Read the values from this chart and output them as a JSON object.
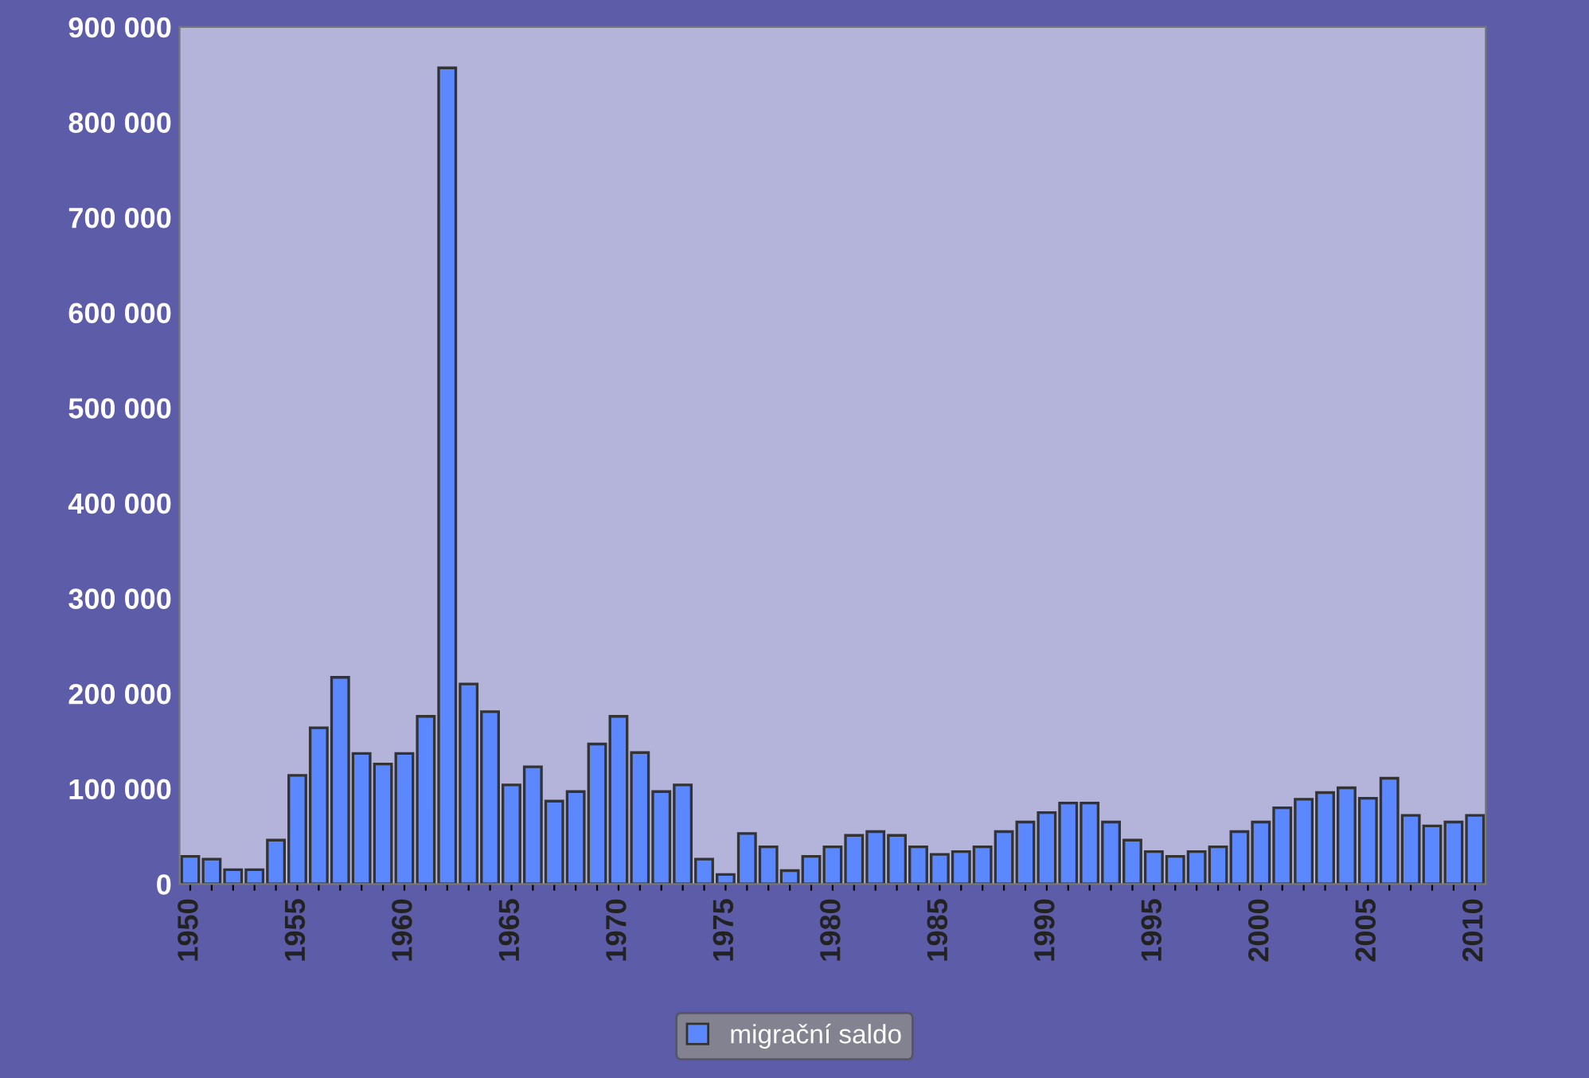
{
  "chart_data": {
    "type": "bar",
    "categories": [
      "1950",
      null,
      null,
      null,
      null,
      "1955",
      null,
      null,
      null,
      null,
      "1960",
      null,
      null,
      null,
      null,
      "1965",
      null,
      null,
      null,
      null,
      "1970",
      null,
      null,
      null,
      null,
      "1975",
      null,
      null,
      null,
      null,
      "1980",
      null,
      null,
      null,
      null,
      "1985",
      null,
      null,
      null,
      null,
      "1990",
      null,
      null,
      null,
      null,
      "1995",
      null,
      null,
      null,
      null,
      "2000",
      null,
      null,
      null,
      null,
      "2005",
      null,
      null,
      null,
      null,
      "2010"
    ],
    "series": [
      {
        "name": "migrační saldo",
        "color": "#5b87ff",
        "values": [
          29000,
          26000,
          15000,
          15000,
          46000,
          114000,
          164000,
          217000,
          137000,
          126000,
          137000,
          176000,
          857000,
          210000,
          181000,
          104000,
          123000,
          87000,
          97000,
          147000,
          176000,
          138000,
          97000,
          104000,
          26000,
          10000,
          53000,
          39000,
          14000,
          29000,
          39000,
          51000,
          55000,
          51000,
          39000,
          31000,
          34000,
          39000,
          55000,
          65000,
          75000,
          85000,
          85000,
          65000,
          46000,
          34000,
          29000,
          34000,
          39000,
          55000,
          65000,
          80000,
          89000,
          96000,
          101000,
          90000,
          111000,
          72000,
          61000,
          65000,
          72000
        ]
      }
    ],
    "ylim": [
      0,
      900000
    ],
    "yticks": [
      {
        "value": 0,
        "label": "0"
      },
      {
        "value": 100000,
        "label": "100 000"
      },
      {
        "value": 200000,
        "label": "200 000"
      },
      {
        "value": 300000,
        "label": "300 000"
      },
      {
        "value": 400000,
        "label": "400 000"
      },
      {
        "value": 500000,
        "label": "500 000"
      },
      {
        "value": 600000,
        "label": "600 000"
      },
      {
        "value": 700000,
        "label": "700 000"
      },
      {
        "value": 800000,
        "label": "800 000"
      },
      {
        "value": 900000,
        "label": "900 000"
      }
    ],
    "grid": false,
    "legend": "bottom"
  }
}
